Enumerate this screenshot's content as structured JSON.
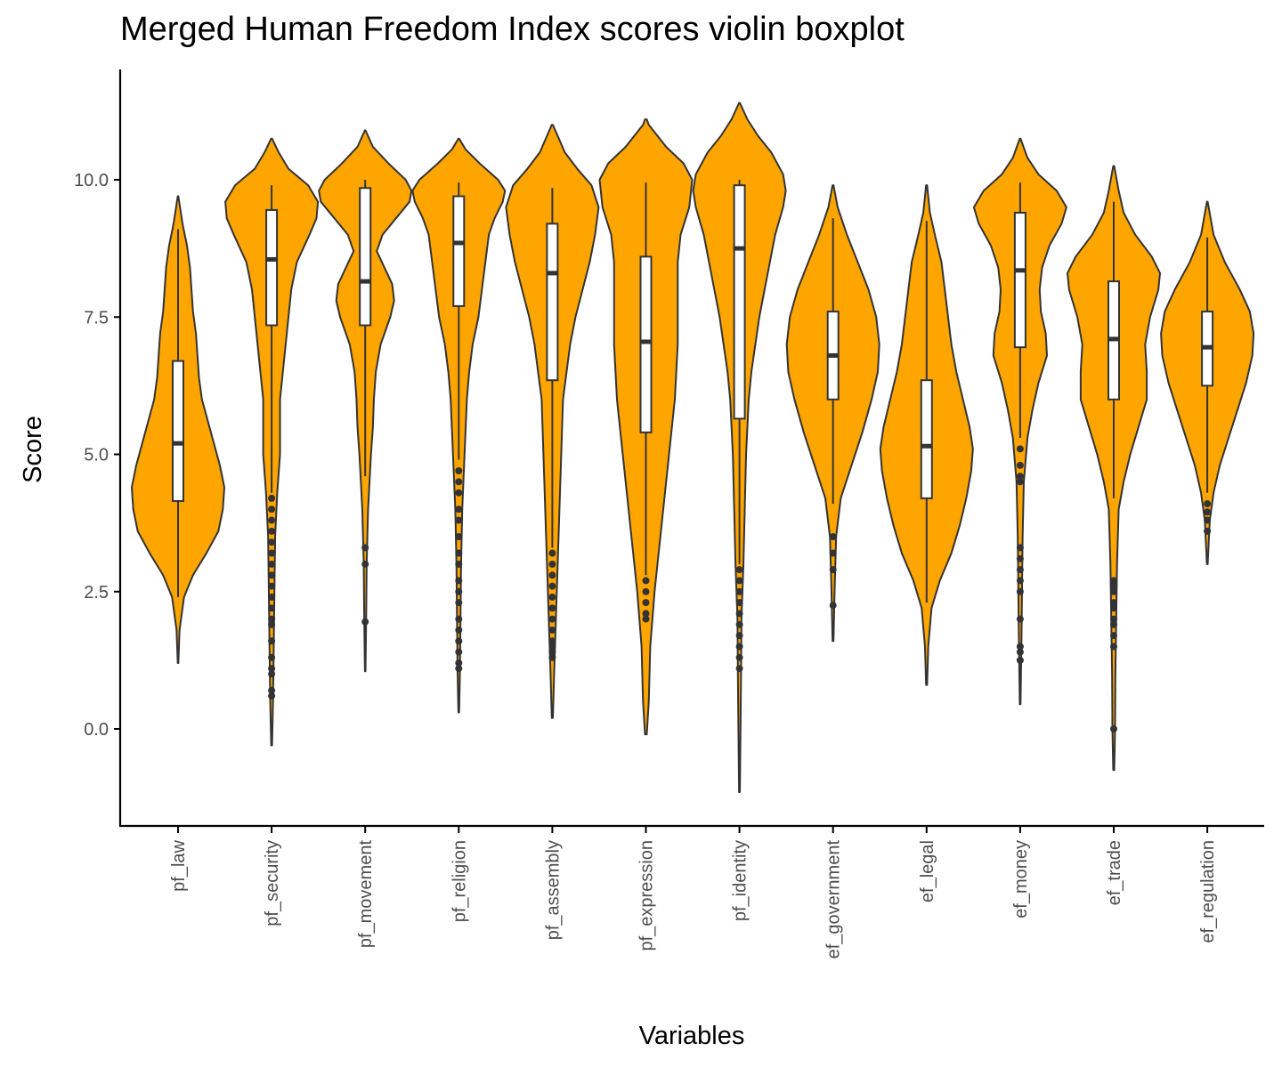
{
  "chart_data": {
    "type": "violin",
    "title": "Merged Human Freedom Index scores violin boxplot",
    "xlabel": "Variables",
    "ylabel": "Score",
    "ylim": [
      -1.8,
      12.0
    ],
    "yticks": [
      0.0,
      2.5,
      5.0,
      7.5,
      10.0
    ],
    "ytick_labels": [
      "0.0",
      "2.5",
      "5.0",
      "7.5",
      "10.0"
    ],
    "violin_color": "#FFA500",
    "outline_color": "#333333",
    "categories": [
      "pf_law",
      "pf_security",
      "pf_movement",
      "pf_religion",
      "pf_assembly",
      "pf_expression",
      "pf_identity",
      "ef_government",
      "ef_legal",
      "ef_money",
      "ef_trade",
      "ef_regulation"
    ],
    "series": [
      {
        "category": "pf_law",
        "violin_min": 1.2,
        "violin_max": 9.7,
        "box": {
          "q1": 4.15,
          "median": 5.2,
          "q3": 6.7
        },
        "whisker": {
          "low": 2.4,
          "high": 9.1
        },
        "outliers": [],
        "density": [
          [
            1.2,
            0.2
          ],
          [
            1.8,
            1
          ],
          [
            2.4,
            4
          ],
          [
            2.8,
            10
          ],
          [
            3.2,
            19
          ],
          [
            3.6,
            27
          ],
          [
            4.0,
            30
          ],
          [
            4.4,
            31
          ],
          [
            4.8,
            28
          ],
          [
            5.2,
            24
          ],
          [
            5.6,
            20
          ],
          [
            6.0,
            16
          ],
          [
            6.4,
            14
          ],
          [
            6.8,
            13
          ],
          [
            7.2,
            12
          ],
          [
            7.6,
            10
          ],
          [
            8.0,
            9
          ],
          [
            8.4,
            8
          ],
          [
            8.8,
            6
          ],
          [
            9.2,
            3
          ],
          [
            9.7,
            0.2
          ]
        ]
      },
      {
        "category": "pf_security",
        "violin_min": -0.3,
        "violin_max": 10.75,
        "box": {
          "q1": 7.35,
          "median": 8.55,
          "q3": 9.45
        },
        "whisker": {
          "low": 4.3,
          "high": 9.9
        },
        "outliers": [
          4.2,
          4.0,
          3.8,
          3.6,
          3.4,
          3.2,
          3.0,
          2.8,
          2.6,
          2.4,
          2.2,
          2.0,
          1.9,
          1.6,
          1.3,
          1.1,
          1.0,
          0.7,
          0.6
        ],
        "density": [
          [
            -0.3,
            0.3
          ],
          [
            0.5,
            1
          ],
          [
            1.5,
            1.5
          ],
          [
            2.5,
            2
          ],
          [
            3.5,
            2.5
          ],
          [
            4.3,
            4
          ],
          [
            5.0,
            6
          ],
          [
            5.5,
            6
          ],
          [
            6.0,
            6
          ],
          [
            6.5,
            8
          ],
          [
            7.0,
            10
          ],
          [
            7.5,
            12
          ],
          [
            8.0,
            14
          ],
          [
            8.5,
            18
          ],
          [
            9.0,
            27
          ],
          [
            9.3,
            32
          ],
          [
            9.6,
            33
          ],
          [
            9.9,
            26
          ],
          [
            10.2,
            12
          ],
          [
            10.5,
            5
          ],
          [
            10.75,
            0.3
          ]
        ]
      },
      {
        "category": "pf_movement",
        "violin_min": 1.05,
        "violin_max": 10.9,
        "box": {
          "q1": 7.35,
          "median": 8.15,
          "q3": 9.85
        },
        "whisker": {
          "low": 4.6,
          "high": 10.0
        },
        "outliers": [
          3.3,
          3.0,
          1.95
        ],
        "density": [
          [
            1.05,
            0.3
          ],
          [
            2.0,
            1
          ],
          [
            3.0,
            1.5
          ],
          [
            4.0,
            3
          ],
          [
            5.0,
            6
          ],
          [
            5.5,
            8
          ],
          [
            6.0,
            9
          ],
          [
            6.5,
            11
          ],
          [
            7.0,
            16
          ],
          [
            7.5,
            26
          ],
          [
            7.8,
            30
          ],
          [
            8.1,
            28
          ],
          [
            8.4,
            20
          ],
          [
            8.7,
            12
          ],
          [
            9.0,
            18
          ],
          [
            9.3,
            32
          ],
          [
            9.6,
            46
          ],
          [
            9.8,
            48
          ],
          [
            10.0,
            42
          ],
          [
            10.3,
            24
          ],
          [
            10.6,
            8
          ],
          [
            10.9,
            0.3
          ]
        ]
      },
      {
        "category": "pf_religion",
        "violin_min": 0.3,
        "violin_max": 10.75,
        "box": {
          "q1": 7.7,
          "median": 8.85,
          "q3": 9.7
        },
        "whisker": {
          "low": 4.9,
          "high": 9.95
        },
        "outliers": [
          4.7,
          4.5,
          4.3,
          4.0,
          3.8,
          3.5,
          3.2,
          3.0,
          2.7,
          2.5,
          2.3,
          2.0,
          1.8,
          1.6,
          1.4,
          1.2,
          1.1
        ],
        "density": [
          [
            0.3,
            0.3
          ],
          [
            1.0,
            1
          ],
          [
            2.0,
            1.5
          ],
          [
            3.0,
            2
          ],
          [
            4.0,
            3
          ],
          [
            5.0,
            5
          ],
          [
            5.5,
            6
          ],
          [
            6.0,
            7
          ],
          [
            6.5,
            9
          ],
          [
            7.0,
            12
          ],
          [
            7.5,
            17
          ],
          [
            8.0,
            20
          ],
          [
            8.5,
            23
          ],
          [
            9.0,
            26
          ],
          [
            9.3,
            31
          ],
          [
            9.6,
            38
          ],
          [
            9.8,
            40
          ],
          [
            10.0,
            34
          ],
          [
            10.3,
            18
          ],
          [
            10.55,
            6
          ],
          [
            10.75,
            0.3
          ]
        ]
      },
      {
        "category": "pf_assembly",
        "violin_min": 0.2,
        "violin_max": 11.0,
        "box": {
          "q1": 6.35,
          "median": 8.3,
          "q3": 9.2
        },
        "whisker": {
          "low": 3.3,
          "high": 9.85
        },
        "outliers": [
          3.2,
          3.0,
          2.8,
          2.6,
          2.4,
          2.2,
          2.0,
          1.8,
          1.6,
          1.5,
          1.4,
          1.3
        ],
        "density": [
          [
            0.2,
            0.3
          ],
          [
            1.0,
            1
          ],
          [
            2.0,
            2
          ],
          [
            3.0,
            3
          ],
          [
            4.0,
            4
          ],
          [
            5.0,
            5
          ],
          [
            6.0,
            6
          ],
          [
            6.5,
            8
          ],
          [
            7.0,
            10
          ],
          [
            7.5,
            13
          ],
          [
            8.0,
            17
          ],
          [
            8.5,
            21
          ],
          [
            9.0,
            24
          ],
          [
            9.5,
            26
          ],
          [
            9.9,
            22
          ],
          [
            10.2,
            14
          ],
          [
            10.5,
            7
          ],
          [
            10.8,
            3
          ],
          [
            11.0,
            0.3
          ]
        ]
      },
      {
        "category": "pf_expression",
        "violin_min": -0.1,
        "violin_max": 11.1,
        "box": {
          "q1": 5.4,
          "median": 7.05,
          "q3": 8.6
        },
        "whisker": {
          "low": 2.8,
          "high": 9.95
        },
        "outliers": [
          2.7,
          2.5,
          2.3,
          2.1,
          2.0
        ],
        "density": [
          [
            -0.1,
            0.3
          ],
          [
            0.5,
            1
          ],
          [
            1.5,
            1.5
          ],
          [
            2.5,
            3
          ],
          [
            3.0,
            4
          ],
          [
            4.0,
            6
          ],
          [
            5.0,
            8
          ],
          [
            6.0,
            10
          ],
          [
            7.0,
            11
          ],
          [
            7.5,
            11
          ],
          [
            8.0,
            11
          ],
          [
            8.5,
            11
          ],
          [
            9.0,
            12
          ],
          [
            9.5,
            15
          ],
          [
            10.0,
            16
          ],
          [
            10.3,
            13
          ],
          [
            10.6,
            7
          ],
          [
            11.0,
            1
          ],
          [
            11.1,
            0.3
          ]
        ]
      },
      {
        "category": "pf_identity",
        "violin_min": -1.15,
        "violin_max": 11.4,
        "box": {
          "q1": 5.65,
          "median": 8.75,
          "q3": 9.9
        },
        "whisker": {
          "low": 3.0,
          "high": 10.0
        },
        "outliers": [
          2.9,
          2.7,
          2.5,
          2.3,
          2.1,
          1.9,
          1.7,
          1.5,
          1.3,
          1.1
        ],
        "density": [
          [
            -1.15,
            0.3
          ],
          [
            0,
            0.8
          ],
          [
            1.0,
            1.2
          ],
          [
            2.0,
            1.5
          ],
          [
            3.0,
            3
          ],
          [
            4.0,
            4
          ],
          [
            5.0,
            5
          ],
          [
            5.5,
            6
          ],
          [
            6.0,
            7
          ],
          [
            6.5,
            9
          ],
          [
            7.0,
            12
          ],
          [
            7.5,
            15
          ],
          [
            8.0,
            19
          ],
          [
            8.5,
            23
          ],
          [
            9.0,
            27
          ],
          [
            9.5,
            33
          ],
          [
            9.8,
            35
          ],
          [
            10.1,
            33
          ],
          [
            10.5,
            24
          ],
          [
            10.8,
            14
          ],
          [
            11.1,
            6
          ],
          [
            11.4,
            0.3
          ]
        ]
      },
      {
        "category": "ef_government",
        "violin_min": 1.6,
        "violin_max": 9.9,
        "box": {
          "q1": 6.0,
          "median": 6.8,
          "q3": 7.6
        },
        "whisker": {
          "low": 4.1,
          "high": 9.3
        },
        "outliers": [
          3.5,
          3.2,
          2.9,
          2.25
        ],
        "density": [
          [
            1.6,
            0.3
          ],
          [
            2.5,
            1
          ],
          [
            3.5,
            2
          ],
          [
            4.2,
            5
          ],
          [
            4.8,
            12
          ],
          [
            5.4,
            19
          ],
          [
            6.0,
            25
          ],
          [
            6.5,
            29
          ],
          [
            7.0,
            30
          ],
          [
            7.5,
            28
          ],
          [
            8.0,
            23
          ],
          [
            8.5,
            16
          ],
          [
            9.0,
            9
          ],
          [
            9.5,
            3
          ],
          [
            9.9,
            0.3
          ]
        ]
      },
      {
        "category": "ef_legal",
        "violin_min": 0.8,
        "violin_max": 9.9,
        "box": {
          "q1": 4.2,
          "median": 5.15,
          "q3": 6.35
        },
        "whisker": {
          "low": 2.3,
          "high": 9.25
        },
        "outliers": [],
        "density": [
          [
            0.8,
            0.3
          ],
          [
            1.5,
            1
          ],
          [
            2.2,
            3
          ],
          [
            2.7,
            8
          ],
          [
            3.2,
            15
          ],
          [
            3.7,
            20
          ],
          [
            4.2,
            24
          ],
          [
            4.7,
            27
          ],
          [
            5.1,
            28
          ],
          [
            5.5,
            26
          ],
          [
            6.0,
            22
          ],
          [
            6.5,
            18
          ],
          [
            7.0,
            15
          ],
          [
            7.5,
            13
          ],
          [
            8.0,
            11
          ],
          [
            8.5,
            9
          ],
          [
            9.0,
            5
          ],
          [
            9.4,
            2
          ],
          [
            9.9,
            0.3
          ]
        ]
      },
      {
        "category": "ef_money",
        "violin_min": 0.45,
        "violin_max": 10.75,
        "box": {
          "q1": 6.95,
          "median": 8.35,
          "q3": 9.4
        },
        "whisker": {
          "low": 5.3,
          "high": 9.95
        },
        "outliers": [
          5.1,
          4.8,
          4.6,
          4.5,
          3.3,
          3.1,
          2.9,
          2.7,
          2.5,
          2.0,
          1.5,
          1.4,
          1.25
        ],
        "density": [
          [
            0.45,
            0.3
          ],
          [
            1.5,
            1
          ],
          [
            2.5,
            1.5
          ],
          [
            3.5,
            2
          ],
          [
            4.5,
            3
          ],
          [
            5.3,
            6
          ],
          [
            5.8,
            10
          ],
          [
            6.3,
            15
          ],
          [
            6.8,
            22
          ],
          [
            7.2,
            21
          ],
          [
            7.6,
            17
          ],
          [
            8.0,
            16
          ],
          [
            8.4,
            18
          ],
          [
            8.8,
            24
          ],
          [
            9.2,
            34
          ],
          [
            9.5,
            38
          ],
          [
            9.8,
            30
          ],
          [
            10.1,
            15
          ],
          [
            10.4,
            6
          ],
          [
            10.75,
            0.3
          ]
        ]
      },
      {
        "category": "ef_trade",
        "violin_min": -0.75,
        "violin_max": 10.25,
        "box": {
          "q1": 6.0,
          "median": 7.1,
          "q3": 8.15
        },
        "whisker": {
          "low": 4.2,
          "high": 9.6
        },
        "outliers": [
          2.7,
          2.6,
          2.5,
          2.3,
          2.2,
          2.0,
          1.9,
          1.7,
          1.5,
          0.0
        ],
        "density": [
          [
            -0.75,
            0.3
          ],
          [
            0,
            0.8
          ],
          [
            1.0,
            1
          ],
          [
            2.0,
            1.5
          ],
          [
            3.0,
            2
          ],
          [
            4.0,
            3
          ],
          [
            4.5,
            6
          ],
          [
            5.0,
            10
          ],
          [
            5.5,
            15
          ],
          [
            6.0,
            20
          ],
          [
            6.5,
            20
          ],
          [
            7.0,
            19
          ],
          [
            7.5,
            22
          ],
          [
            8.0,
            27
          ],
          [
            8.3,
            28
          ],
          [
            8.6,
            23
          ],
          [
            9.0,
            13
          ],
          [
            9.4,
            6
          ],
          [
            9.8,
            3
          ],
          [
            10.25,
            0.3
          ]
        ]
      },
      {
        "category": "ef_regulation",
        "violin_min": 3.0,
        "violin_max": 9.6,
        "box": {
          "q1": 6.25,
          "median": 6.95,
          "q3": 7.6
        },
        "whisker": {
          "low": 4.3,
          "high": 8.95
        },
        "outliers": [
          4.1,
          3.95,
          3.8,
          3.6
        ],
        "density": [
          [
            3.0,
            0.3
          ],
          [
            3.8,
            2
          ],
          [
            4.3,
            5
          ],
          [
            4.8,
            10
          ],
          [
            5.3,
            17
          ],
          [
            5.8,
            24
          ],
          [
            6.3,
            31
          ],
          [
            6.8,
            36
          ],
          [
            7.2,
            37
          ],
          [
            7.6,
            34
          ],
          [
            8.0,
            26
          ],
          [
            8.5,
            14
          ],
          [
            9.0,
            5
          ],
          [
            9.6,
            0.3
          ]
        ]
      }
    ]
  }
}
